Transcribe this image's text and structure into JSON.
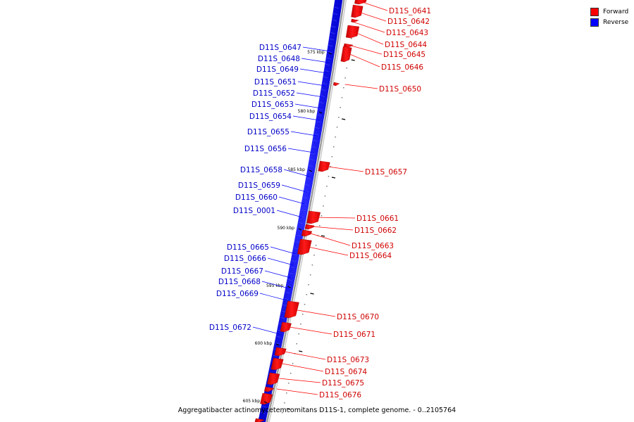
{
  "legend": {
    "forward_label": "Forward",
    "reverse_label": "Reverse",
    "forward_color": "#ff0000",
    "reverse_color": "#0000ff"
  },
  "caption": "Aggregatibacter actinomycetemcomitans D11S-1, complete genome. - 0..2105764",
  "ticks": [
    "575 kbp",
    "580 kbp",
    "585 kbp",
    "590 kbp",
    "595 kbp",
    "600 kbp",
    "605 kbp"
  ],
  "reverse_genes": [
    "D11S_0647",
    "D11S_0648",
    "D11S_0649",
    "D11S_0651",
    "D11S_0652",
    "D11S_0653",
    "D11S_0654",
    "D11S_0655",
    "D11S_0656",
    "D11S_0658",
    "D11S_0659",
    "D11S_0660",
    "D11S_0001",
    "D11S_0665",
    "D11S_0666",
    "D11S_0667",
    "D11S_0668",
    "D11S_0669",
    "D11S_0672"
  ],
  "forward_genes": [
    "D11S_0641",
    "D11S_0642",
    "D11S_0643",
    "D11S_0644",
    "D11S_0645",
    "D11S_0646",
    "D11S_0650",
    "D11S_0657",
    "D11S_0661",
    "D11S_0662",
    "D11S_0663",
    "D11S_0664",
    "D11S_0670",
    "D11S_0671",
    "D11S_0673",
    "D11S_0674",
    "D11S_0675",
    "D11S_0676"
  ]
}
